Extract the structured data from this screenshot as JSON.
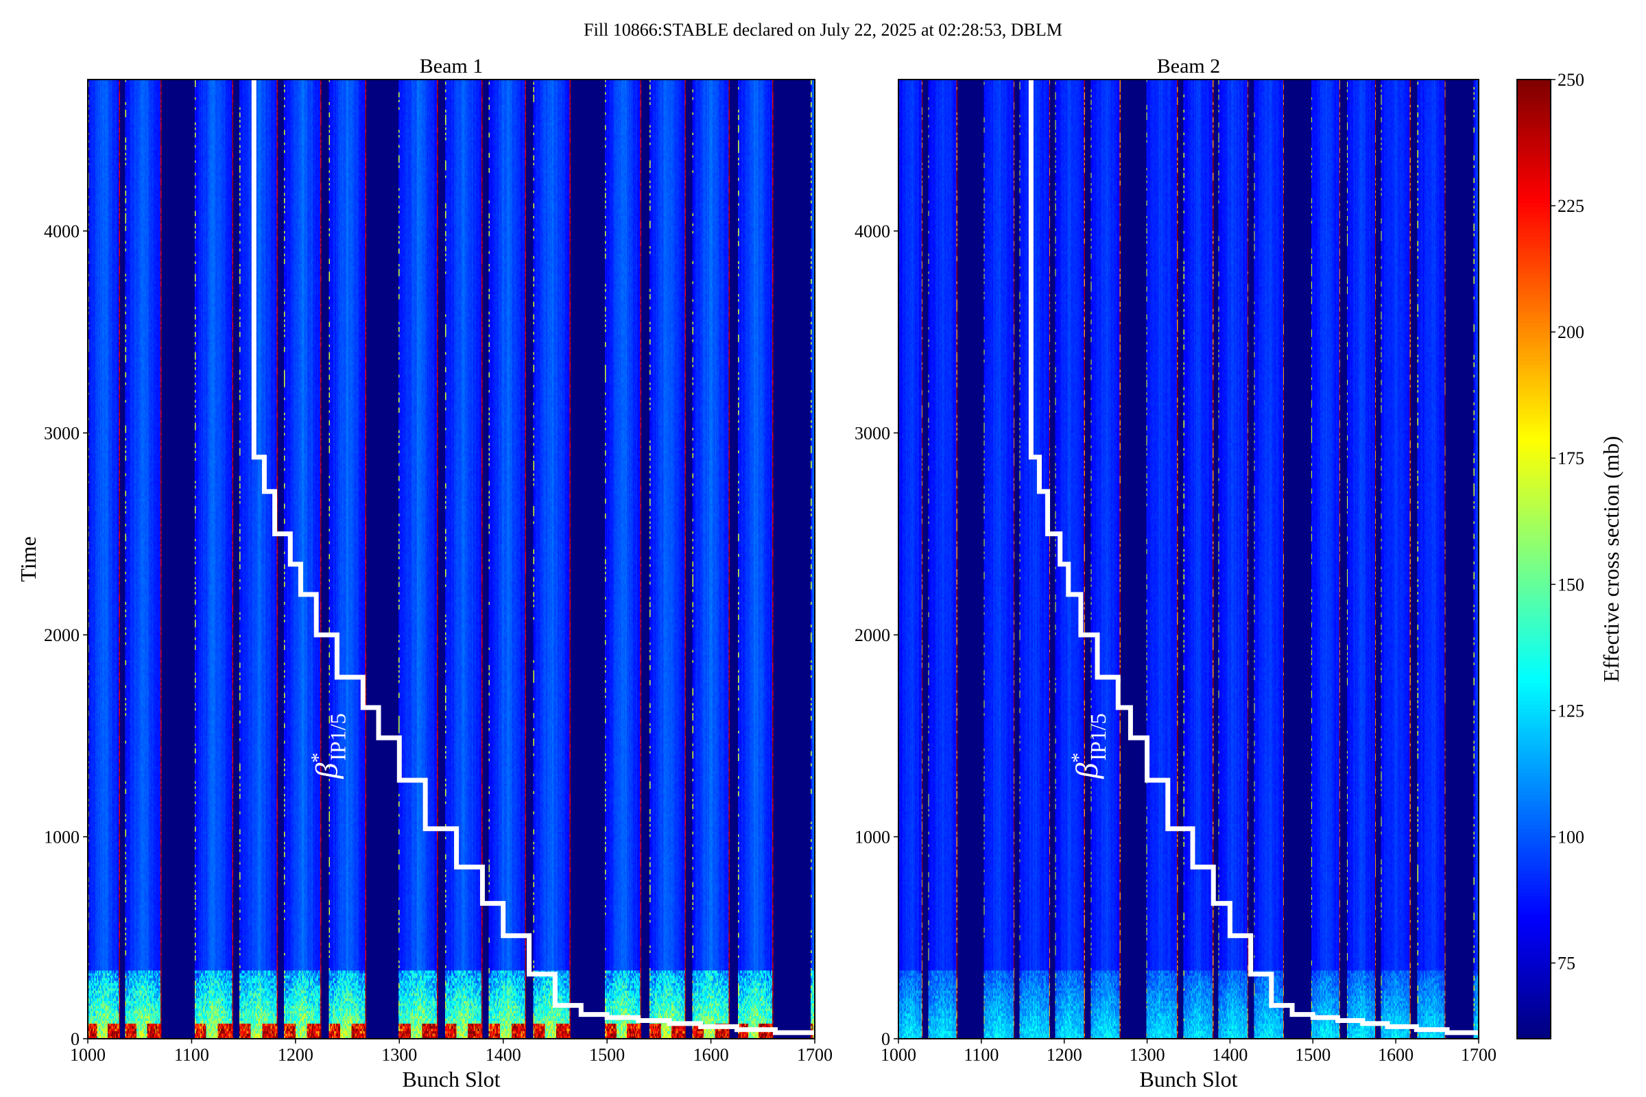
{
  "chart_data": {
    "type": "heatmap",
    "title": "Fill 10866:STABLE declared on July 22, 2025 at 02:28:53, DBLM",
    "colormap": "jet",
    "colorbar": {
      "label": "Effective cross section (mb)",
      "range": [
        60,
        250
      ],
      "ticks": [
        75,
        100,
        125,
        150,
        175,
        200,
        225,
        250
      ]
    },
    "panels": [
      {
        "title": "Beam 1",
        "xlabel": "Bunch Slot",
        "ylabel": "Time",
        "xlim": [
          1000,
          1700
        ],
        "ylim": [
          0,
          4750
        ],
        "xticks": [
          1000,
          1100,
          1200,
          1300,
          1400,
          1500,
          1600,
          1700
        ],
        "yticks": [
          0,
          1000,
          2000,
          3000,
          4000
        ],
        "filled_bunch_ranges": [
          [
            1000,
            1030
          ],
          [
            1036,
            1070
          ],
          [
            1103,
            1139
          ],
          [
            1146,
            1182
          ],
          [
            1189,
            1224
          ],
          [
            1232,
            1267
          ],
          [
            1299,
            1336
          ],
          [
            1344,
            1379
          ],
          [
            1386,
            1421
          ],
          [
            1429,
            1464
          ],
          [
            1498,
            1532
          ],
          [
            1541,
            1575
          ],
          [
            1582,
            1617
          ],
          [
            1626,
            1659
          ],
          [
            1696,
            1700
          ]
        ],
        "high_early_values": true
      },
      {
        "title": "Beam 2",
        "xlabel": "Bunch Slot",
        "ylabel": "",
        "xlim": [
          1000,
          1700
        ],
        "ylim": [
          0,
          4750
        ],
        "xticks": [
          1000,
          1100,
          1200,
          1300,
          1400,
          1500,
          1600,
          1700
        ],
        "yticks": [
          0,
          1000,
          2000,
          3000,
          4000
        ],
        "filled_bunch_ranges": [
          [
            1000,
            1028
          ],
          [
            1036,
            1070
          ],
          [
            1103,
            1139
          ],
          [
            1146,
            1182
          ],
          [
            1189,
            1224
          ],
          [
            1232,
            1267
          ],
          [
            1299,
            1336
          ],
          [
            1344,
            1379
          ],
          [
            1386,
            1421
          ],
          [
            1429,
            1464
          ],
          [
            1498,
            1532
          ],
          [
            1541,
            1575
          ],
          [
            1582,
            1617
          ],
          [
            1626,
            1659
          ],
          [
            1694,
            1700
          ]
        ],
        "high_early_values": false
      }
    ],
    "overlay_line": {
      "label_main": "β",
      "label_sup": "*",
      "label_sub": "IP1/5",
      "color": "#ffffff",
      "label_position": {
        "x": 1240,
        "y": 1450
      },
      "start": {
        "x": 1160,
        "y": 4750
      },
      "steps": [
        {
          "x": 1160,
          "y": 2880
        },
        {
          "x": 1170,
          "y": 2710
        },
        {
          "x": 1180,
          "y": 2500
        },
        {
          "x": 1195,
          "y": 2350
        },
        {
          "x": 1205,
          "y": 2200
        },
        {
          "x": 1220,
          "y": 2000
        },
        {
          "x": 1240,
          "y": 1790
        },
        {
          "x": 1265,
          "y": 1640
        },
        {
          "x": 1280,
          "y": 1490
        },
        {
          "x": 1300,
          "y": 1280
        },
        {
          "x": 1325,
          "y": 1040
        },
        {
          "x": 1355,
          "y": 850
        },
        {
          "x": 1380,
          "y": 670
        },
        {
          "x": 1400,
          "y": 510
        },
        {
          "x": 1425,
          "y": 320
        },
        {
          "x": 1450,
          "y": 165
        },
        {
          "x": 1475,
          "y": 120
        },
        {
          "x": 1500,
          "y": 105
        },
        {
          "x": 1530,
          "y": 90
        },
        {
          "x": 1560,
          "y": 75
        },
        {
          "x": 1590,
          "y": 60
        },
        {
          "x": 1625,
          "y": 45
        },
        {
          "x": 1662,
          "y": 30
        }
      ],
      "end_x": 1700
    }
  }
}
